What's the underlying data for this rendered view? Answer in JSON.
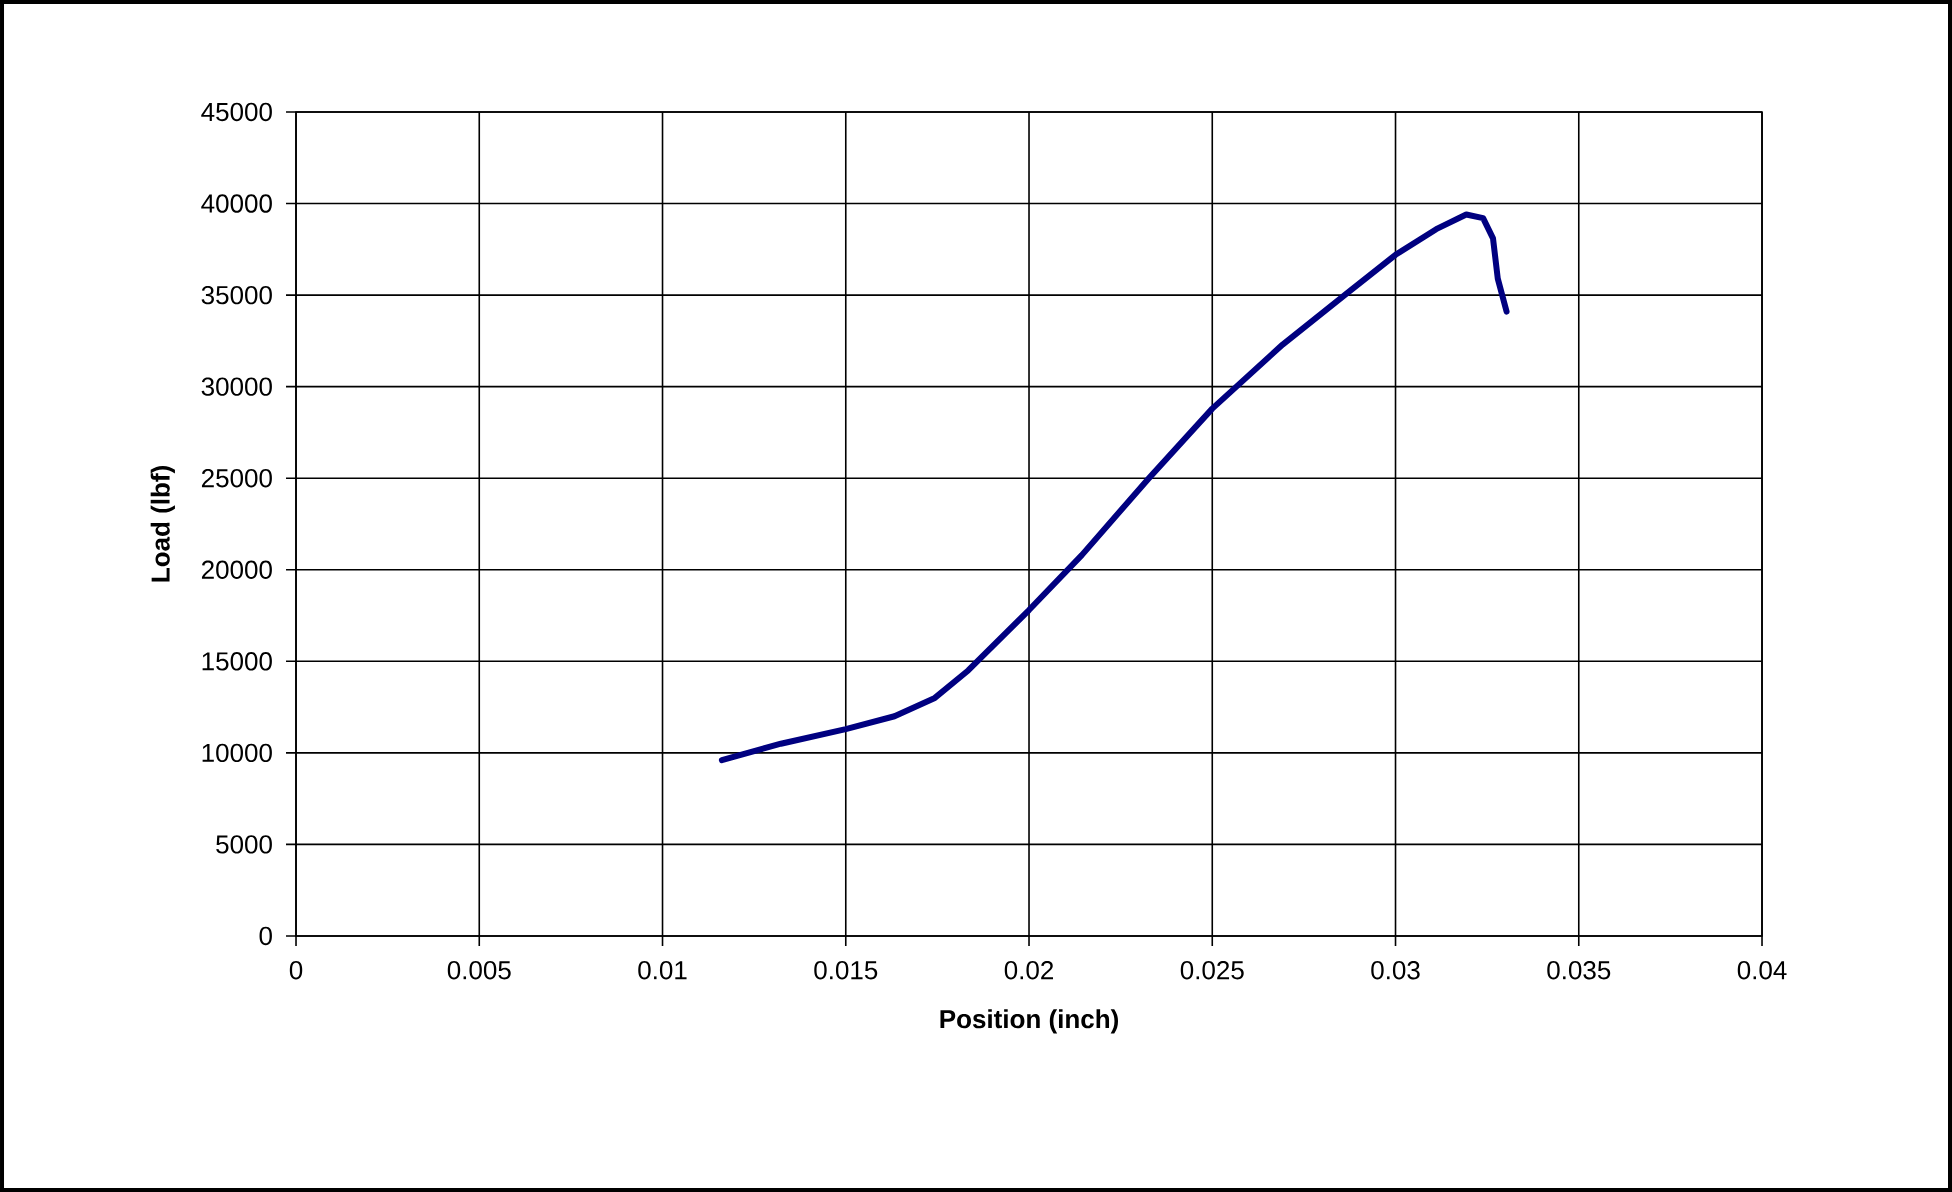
{
  "chart_data": {
    "type": "line",
    "xlabel": "Position (inch)",
    "ylabel": "Load (lbf)",
    "xlim": [
      0,
      0.04
    ],
    "ylim": [
      0,
      45000
    ],
    "xticks": [
      0,
      0.005,
      0.01,
      0.015,
      0.02,
      0.025,
      0.03,
      0.035,
      0.04
    ],
    "yticks": [
      0,
      5000,
      10000,
      15000,
      20000,
      25000,
      30000,
      35000,
      40000,
      45000
    ],
    "grid": true,
    "marker": "none",
    "line_style": "solid",
    "series": [
      {
        "color": "#000080",
        "x": [
          0.01162,
          0.01323,
          0.015,
          0.01633,
          0.01743,
          0.01834,
          0.02,
          0.02144,
          0.02327,
          0.025,
          0.02692,
          0.02874,
          0.03,
          0.03111,
          0.03193,
          0.03239,
          0.03266,
          0.03279,
          0.03303
        ],
        "values": [
          9600,
          10500,
          11300,
          12000,
          13000,
          14500,
          17800,
          20800,
          25000,
          28800,
          32300,
          35200,
          37200,
          38600,
          39400,
          39200,
          38100,
          35900,
          34100
        ]
      }
    ]
  }
}
